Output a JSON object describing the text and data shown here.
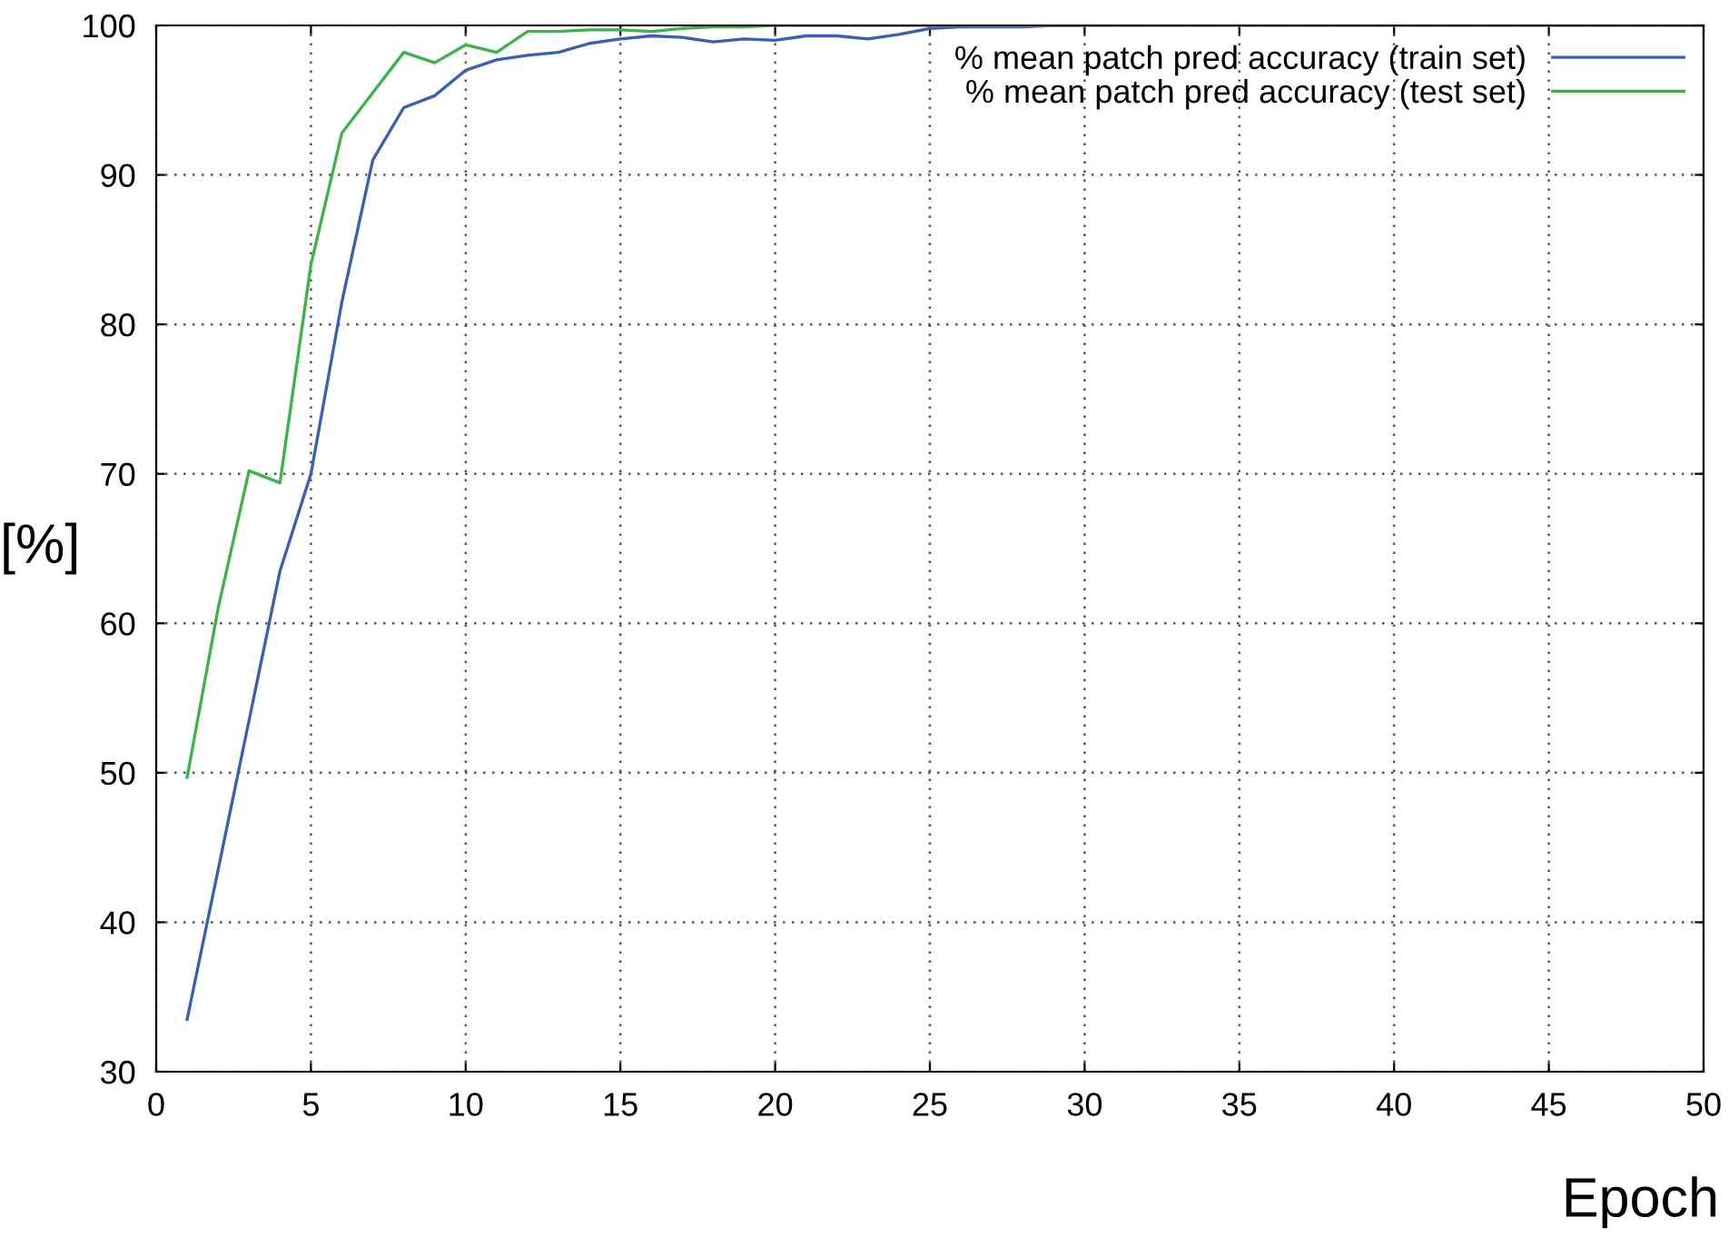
{
  "chart_data": {
    "type": "line",
    "xlabel": "Epoch",
    "ylabel": "[%]",
    "xlim": [
      0,
      50
    ],
    "ylim": [
      30,
      100
    ],
    "xticks": [
      0,
      5,
      10,
      15,
      20,
      25,
      30,
      35,
      40,
      45,
      50
    ],
    "yticks": [
      30,
      40,
      50,
      60,
      70,
      80,
      90,
      100
    ],
    "grid": true,
    "legend": "top right",
    "line_style": "solid",
    "marker": "none",
    "x": [
      1,
      2,
      3,
      4,
      5,
      6,
      7,
      8,
      9,
      10,
      11,
      12,
      13,
      14,
      15,
      16,
      17,
      18,
      19,
      20,
      21,
      22,
      23,
      24,
      25,
      26,
      27,
      28,
      29,
      30,
      31,
      32,
      33,
      34,
      35,
      36,
      37,
      38,
      39,
      40,
      41,
      42,
      43,
      44,
      45,
      46,
      47,
      48,
      49,
      50
    ],
    "series": [
      {
        "name": "% mean patch pred accuracy (train set)",
        "color": "#3a5fb5",
        "values": [
          33.5,
          43.5,
          53.5,
          63.5,
          70,
          81.5,
          91,
          94.5,
          95.3,
          97,
          97.7,
          98,
          98.2,
          98.8,
          99.1,
          99.3,
          99.2,
          98.9,
          99.1,
          99,
          99.3,
          99.3,
          99.1,
          99.4,
          99.8,
          99.9,
          99.9,
          99.9,
          100,
          100,
          null,
          null,
          null,
          null,
          null,
          null,
          null,
          null,
          null,
          null,
          null,
          null,
          null,
          null,
          null,
          null,
          null,
          null,
          null,
          null
        ]
      },
      {
        "name": "% mean patch pred accuracy (test set)",
        "color": "#3cb44b",
        "values": [
          49.7,
          61,
          70.2,
          69.4,
          84,
          92.8,
          95.5,
          98.2,
          97.5,
          98.7,
          98.2,
          99.6,
          99.6,
          99.7,
          99.7,
          99.6,
          99.8,
          99.9,
          99.9,
          100,
          100,
          100,
          100,
          100,
          100,
          100,
          100,
          100,
          100,
          100,
          100,
          100,
          100,
          100,
          100,
          100,
          100,
          100,
          100,
          100,
          100,
          100,
          100,
          100,
          100,
          100,
          100,
          100,
          100,
          100
        ]
      }
    ]
  }
}
